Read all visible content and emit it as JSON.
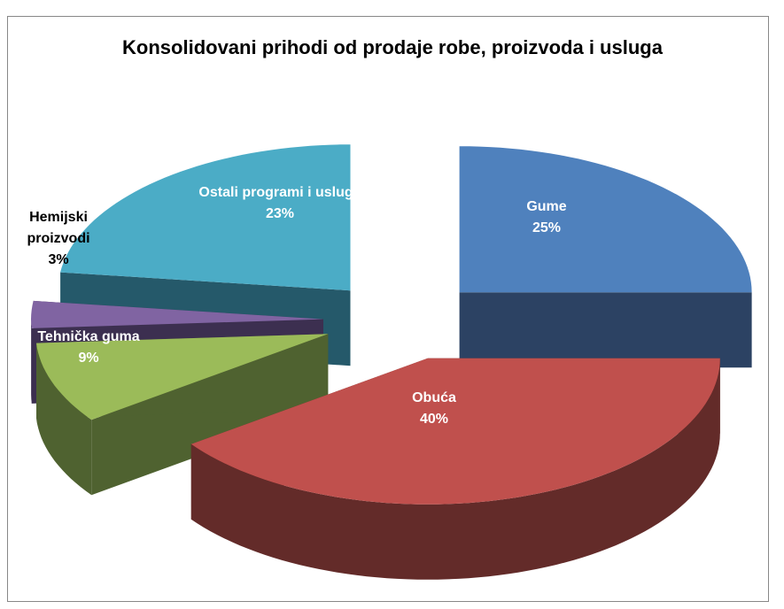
{
  "chart_data": {
    "type": "pie3d",
    "title": "Konsolidovani prihodi od prodaje robe, proizvoda i usluga",
    "categories": [
      "Gume",
      "Obuća",
      "Tehnička guma",
      "Hemijski proizvodi",
      "Ostali programi i usluge"
    ],
    "values": [
      25,
      40,
      9,
      3,
      23
    ],
    "value_labels": [
      "25%",
      "40%",
      "9%",
      "3%",
      "23%"
    ],
    "colors": [
      "#4f81bd",
      "#c0504d",
      "#9bbb59",
      "#8064a2",
      "#4bacc6"
    ],
    "side_colors": [
      "#2c4263",
      "#632b29",
      "#4f6230",
      "#3c2f50",
      "#25596a"
    ]
  }
}
